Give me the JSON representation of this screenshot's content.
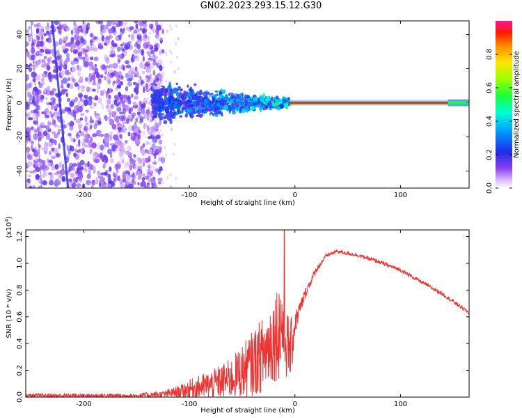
{
  "title": "GN02.2023.293.15.12.G30",
  "chart_data": [
    {
      "type": "heatmap",
      "title": "GN02.2023.293.15.12.G30",
      "xlabel": "Height of straight line (km)",
      "ylabel": "Frequency (Hz)",
      "xlim": [
        -255,
        165
      ],
      "ylim": [
        -50,
        48
      ],
      "xticks": [
        -200,
        -100,
        0,
        100
      ],
      "yticks": [
        -40,
        -20,
        0,
        20,
        40
      ],
      "colorbar": {
        "label": "Normalized spectral amplitude",
        "range": [
          0.0,
          1.0
        ],
        "ticks": [
          0.0,
          0.2,
          0.4,
          0.6,
          0.8
        ]
      },
      "features": {
        "noise_region_km": [
          -255,
          -135
        ],
        "transition_region_km": [
          -135,
          -5
        ],
        "narrowband_signal_km": [
          -5,
          165
        ],
        "signal_frequency_hz": 0,
        "diagonal_track": {
          "from_km": -230,
          "from_hz": 48,
          "to_km": -215,
          "to_hz": -50
        }
      }
    },
    {
      "type": "line",
      "xlabel": "Height of straight line (km)",
      "ylabel": "SNR (10 * v/v)",
      "y_multiplier": "(x10",
      "y_multiplier_exp": "4",
      "y_multiplier_close": ")",
      "xlim": [
        -255,
        165
      ],
      "ylim": [
        0.0,
        1.25
      ],
      "xticks": [
        -200,
        -100,
        0,
        100
      ],
      "yticks": [
        0.0,
        0.2,
        0.4,
        0.6,
        0.8,
        1.0,
        1.2
      ],
      "ytick_labels": [
        "0.0",
        "0.2",
        "0.4",
        "0.6",
        "0.8",
        "1.0",
        "1.2"
      ],
      "series_color": "#ee3333",
      "envelope": {
        "x": [
          -255,
          -200,
          -150,
          -125,
          -110,
          -100,
          -80,
          -60,
          -45,
          -30,
          -20,
          -12,
          -8,
          -4,
          0,
          10,
          20,
          30,
          40,
          60,
          80,
          100,
          120,
          140,
          165
        ],
        "base": [
          0.01,
          0.01,
          0.01,
          0.02,
          0.04,
          0.06,
          0.09,
          0.14,
          0.22,
          0.32,
          0.45,
          0.55,
          0.4,
          0.35,
          0.55,
          0.78,
          0.95,
          1.06,
          1.09,
          1.06,
          1.01,
          0.95,
          0.86,
          0.77,
          0.63
        ],
        "spread": [
          0.02,
          0.02,
          0.02,
          0.03,
          0.05,
          0.08,
          0.12,
          0.17,
          0.25,
          0.32,
          0.38,
          0.45,
          0.3,
          0.25,
          0.18,
          0.08,
          0.05,
          0.03,
          0.03,
          0.03,
          0.03,
          0.03,
          0.03,
          0.03,
          0.03
        ]
      },
      "peak": {
        "x": -10,
        "y": 1.25
      }
    }
  ]
}
